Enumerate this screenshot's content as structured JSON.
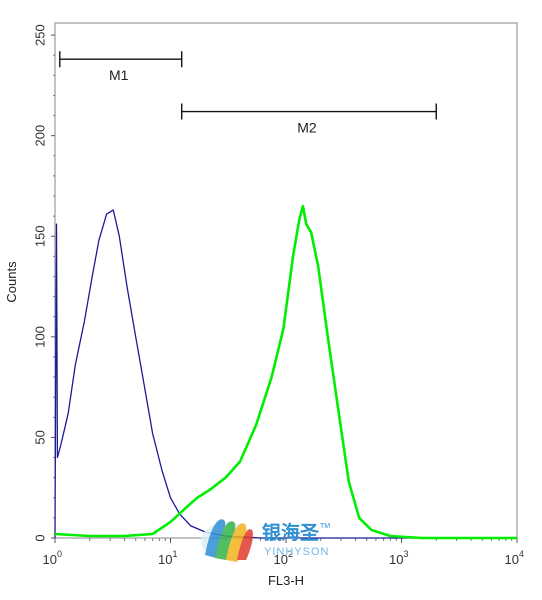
{
  "chart_data": {
    "type": "line",
    "xlabel": "FL3-H",
    "ylabel": "Counts",
    "x_scale": "log10",
    "xlim": [
      1,
      10000
    ],
    "ylim": [
      0,
      256
    ],
    "x_ticks": [
      {
        "base": "10",
        "exp": "0",
        "value": 1
      },
      {
        "base": "10",
        "exp": "1",
        "value": 10
      },
      {
        "base": "10",
        "exp": "2",
        "value": 100
      },
      {
        "base": "10",
        "exp": "3",
        "value": 1000
      },
      {
        "base": "10",
        "exp": "4",
        "value": 10000
      }
    ],
    "y_ticks": [
      "0",
      "50",
      "100",
      "150",
      "200",
      "250"
    ],
    "markers": [
      {
        "label": "M1",
        "x_start": 1.1,
        "x_end": 12.5,
        "y": 238
      },
      {
        "label": "M2",
        "x_start": 12.5,
        "x_end": 2000,
        "y": 212
      }
    ],
    "series": [
      {
        "color": "#1a1a99",
        "points": [
          [
            1.0,
            0
          ],
          [
            1.01,
            60
          ],
          [
            1.03,
            156
          ],
          [
            1.05,
            40
          ],
          [
            1.12,
            46
          ],
          [
            1.3,
            62
          ],
          [
            1.5,
            86
          ],
          [
            1.8,
            108
          ],
          [
            2.1,
            130
          ],
          [
            2.4,
            148
          ],
          [
            2.8,
            161
          ],
          [
            3.2,
            163
          ],
          [
            3.6,
            150
          ],
          [
            4.2,
            125
          ],
          [
            5.0,
            100
          ],
          [
            6.0,
            74
          ],
          [
            7.0,
            52
          ],
          [
            8.5,
            33
          ],
          [
            10,
            20
          ],
          [
            12,
            12
          ],
          [
            15,
            6
          ],
          [
            20,
            3
          ],
          [
            30,
            1
          ],
          [
            60,
            0
          ],
          [
            10000,
            0
          ]
        ]
      },
      {
        "color": "#00ee00",
        "points": [
          [
            1.0,
            2
          ],
          [
            2,
            1
          ],
          [
            4,
            1
          ],
          [
            7,
            2
          ],
          [
            10,
            8
          ],
          [
            13,
            14
          ],
          [
            17,
            20
          ],
          [
            22,
            24
          ],
          [
            30,
            30
          ],
          [
            40,
            38
          ],
          [
            55,
            56
          ],
          [
            75,
            80
          ],
          [
            95,
            104
          ],
          [
            115,
            140
          ],
          [
            130,
            158
          ],
          [
            140,
            165
          ],
          [
            150,
            156
          ],
          [
            165,
            152
          ],
          [
            190,
            135
          ],
          [
            230,
            100
          ],
          [
            290,
            60
          ],
          [
            350,
            28
          ],
          [
            430,
            10
          ],
          [
            550,
            4
          ],
          [
            800,
            1
          ],
          [
            1500,
            0
          ],
          [
            10000,
            0
          ]
        ]
      }
    ]
  },
  "watermark": {
    "cn": "银海圣",
    "en": "YINHYSON",
    "tm": "TM"
  }
}
